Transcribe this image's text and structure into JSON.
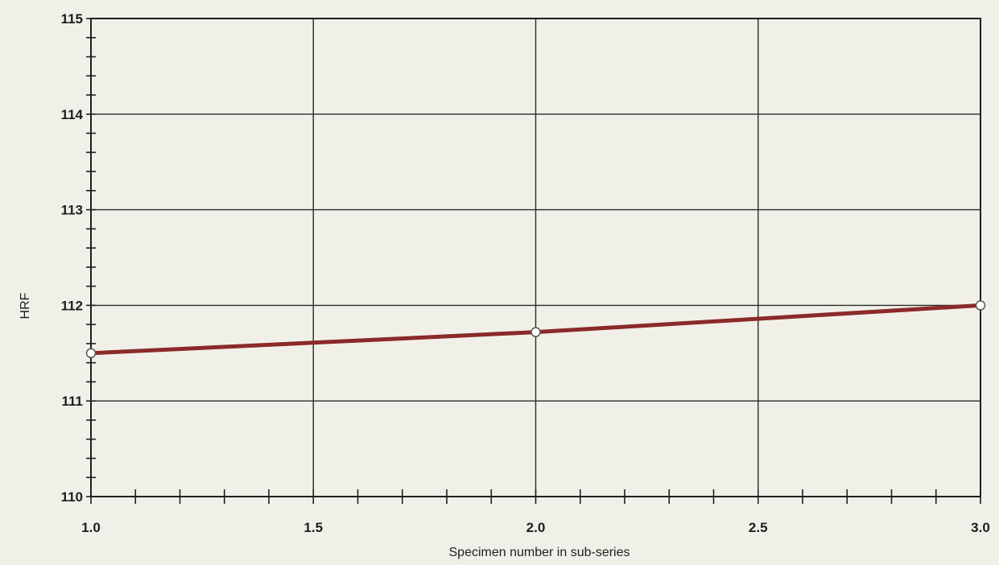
{
  "chart_data": {
    "type": "line",
    "title": "",
    "xlabel": "Specimen number in sub-series",
    "ylabel": "HRF",
    "xlim": [
      1.0,
      3.0
    ],
    "ylim": [
      110,
      115
    ],
    "x_ticks": [
      "1.0",
      "1.5",
      "2.0",
      "2.5",
      "3.0"
    ],
    "y_ticks": [
      "110",
      "111",
      "112",
      "113",
      "114",
      "115"
    ],
    "grid": true,
    "legend": "none",
    "line_color": "#8b2a2a",
    "series": [
      {
        "x": [
          1.0,
          2.0,
          3.0
        ],
        "y": [
          111.5,
          111.72,
          112.0
        ]
      }
    ]
  }
}
